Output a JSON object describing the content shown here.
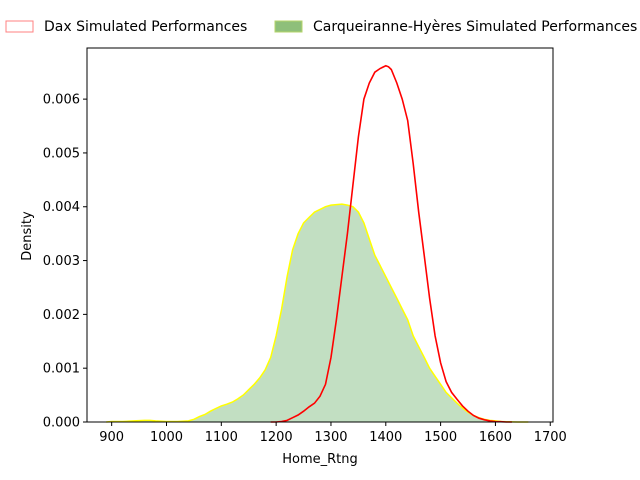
{
  "chart_data": {
    "type": "area",
    "xlabel": "Home_Rtng",
    "ylabel": "Density",
    "xlim": [
      855,
      1705
    ],
    "ylim": [
      0,
      0.00695
    ],
    "xticks": [
      900,
      1000,
      1100,
      1200,
      1300,
      1400,
      1500,
      1600,
      1700
    ],
    "yticks": [
      0.0,
      0.001,
      0.002,
      0.003,
      0.004,
      0.005,
      0.006
    ],
    "ytick_labels": [
      "0.000",
      "0.001",
      "0.002",
      "0.003",
      "0.004",
      "0.005",
      "0.006"
    ],
    "legend_placement": "top-center, outside plot",
    "grid": false,
    "series": [
      {
        "name": "Dax Simulated Performances",
        "style": "line",
        "color": "#ff0000",
        "x": [
          1190,
          1200,
          1210,
          1220,
          1230,
          1240,
          1250,
          1260,
          1270,
          1280,
          1290,
          1300,
          1310,
          1320,
          1330,
          1340,
          1350,
          1360,
          1370,
          1380,
          1390,
          1400,
          1405,
          1410,
          1420,
          1430,
          1440,
          1450,
          1460,
          1470,
          1480,
          1490,
          1500,
          1510,
          1520,
          1530,
          1540,
          1550,
          1560,
          1570,
          1580,
          1590,
          1600,
          1610,
          1620,
          1630
        ],
        "y": [
          0,
          0,
          1e-05,
          3e-05,
          8e-05,
          0.00013,
          0.0002,
          0.00028,
          0.00035,
          0.00048,
          0.0007,
          0.0012,
          0.0019,
          0.0027,
          0.0035,
          0.0044,
          0.0053,
          0.006,
          0.0063,
          0.0065,
          0.00657,
          0.00662,
          0.0066,
          0.00655,
          0.0063,
          0.006,
          0.0056,
          0.0048,
          0.0039,
          0.0031,
          0.0023,
          0.0016,
          0.0011,
          0.00075,
          0.00055,
          0.00042,
          0.0003,
          0.0002,
          0.00012,
          7e-05,
          4e-05,
          2e-05,
          1e-05,
          5e-06,
          0,
          0
        ]
      },
      {
        "name": "Carqueiranne-Hyères Simulated Performances",
        "style": "filled",
        "color": "#8ebf7a",
        "fill": "#c2dfc2",
        "edgecolor": "#ffff00",
        "x": [
          890,
          900,
          920,
          940,
          960,
          970,
          980,
          1000,
          1020,
          1040,
          1050,
          1060,
          1070,
          1080,
          1090,
          1100,
          1110,
          1120,
          1130,
          1140,
          1150,
          1160,
          1170,
          1180,
          1190,
          1200,
          1210,
          1220,
          1230,
          1240,
          1250,
          1260,
          1270,
          1280,
          1290,
          1300,
          1310,
          1320,
          1330,
          1340,
          1350,
          1360,
          1370,
          1380,
          1390,
          1400,
          1410,
          1420,
          1430,
          1440,
          1450,
          1460,
          1470,
          1480,
          1490,
          1500,
          1510,
          1520,
          1530,
          1540,
          1550,
          1560,
          1570,
          1580,
          1590,
          1600,
          1610,
          1620,
          1640,
          1660
        ],
        "y": [
          0,
          1e-05,
          1e-05,
          2e-05,
          3e-05,
          3e-05,
          2e-05,
          1e-05,
          1e-05,
          2e-05,
          5e-05,
          0.0001,
          0.00014,
          0.0002,
          0.00025,
          0.0003,
          0.00033,
          0.00037,
          0.00043,
          0.0005,
          0.0006,
          0.0007,
          0.00082,
          0.00097,
          0.0012,
          0.0016,
          0.0021,
          0.0027,
          0.0032,
          0.0035,
          0.0037,
          0.0038,
          0.0039,
          0.00395,
          0.004,
          0.00403,
          0.00404,
          0.00405,
          0.00403,
          0.004,
          0.0039,
          0.0037,
          0.0034,
          0.0031,
          0.0029,
          0.0027,
          0.0025,
          0.0023,
          0.0021,
          0.0019,
          0.0016,
          0.0014,
          0.0012,
          0.001,
          0.00085,
          0.0007,
          0.00055,
          0.00045,
          0.00035,
          0.00026,
          0.00018,
          0.00012,
          8e-05,
          5e-05,
          3e-05,
          2e-05,
          1e-05,
          5e-06,
          0,
          0
        ]
      }
    ]
  }
}
